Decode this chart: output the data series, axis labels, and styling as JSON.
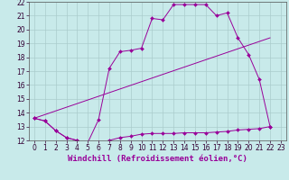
{
  "xlabel": "Windchill (Refroidissement éolien,°C)",
  "xlim": [
    -0.5,
    23.5
  ],
  "ylim": [
    12,
    22
  ],
  "xticks": [
    0,
    1,
    2,
    3,
    4,
    5,
    6,
    7,
    8,
    9,
    10,
    11,
    12,
    13,
    14,
    15,
    16,
    17,
    18,
    19,
    20,
    21,
    22,
    23
  ],
  "yticks": [
    12,
    13,
    14,
    15,
    16,
    17,
    18,
    19,
    20,
    21,
    22
  ],
  "bg_color": "#c8eaea",
  "line_color": "#990099",
  "grid_color": "#aacccc",
  "line1": {
    "x": [
      0,
      1,
      2,
      3,
      4,
      5,
      6,
      7,
      8,
      9,
      10,
      11,
      12,
      13,
      14,
      15,
      16,
      17,
      18,
      19,
      20,
      21,
      22
    ],
    "y": [
      13.6,
      13.4,
      12.7,
      12.2,
      12.0,
      11.85,
      13.5,
      17.2,
      18.4,
      18.5,
      18.65,
      20.8,
      20.7,
      21.8,
      21.8,
      21.8,
      21.8,
      21.0,
      21.2,
      19.4,
      18.2,
      16.4,
      13.0
    ]
  },
  "line2": {
    "x": [
      0,
      1,
      2,
      3,
      4,
      5,
      6,
      7,
      8,
      9,
      10,
      11,
      12,
      13,
      14,
      15,
      16,
      17,
      18,
      19,
      20,
      21,
      22
    ],
    "y": [
      13.6,
      13.4,
      12.7,
      12.2,
      12.0,
      11.85,
      11.85,
      12.0,
      12.2,
      12.3,
      12.45,
      12.5,
      12.5,
      12.5,
      12.55,
      12.55,
      12.55,
      12.6,
      12.65,
      12.75,
      12.8,
      12.85,
      13.0
    ]
  },
  "line3": {
    "x": [
      0,
      22
    ],
    "y": [
      13.6,
      19.4
    ]
  },
  "xlabel_fontsize": 6.5,
  "tick_fontsize": 5.5
}
